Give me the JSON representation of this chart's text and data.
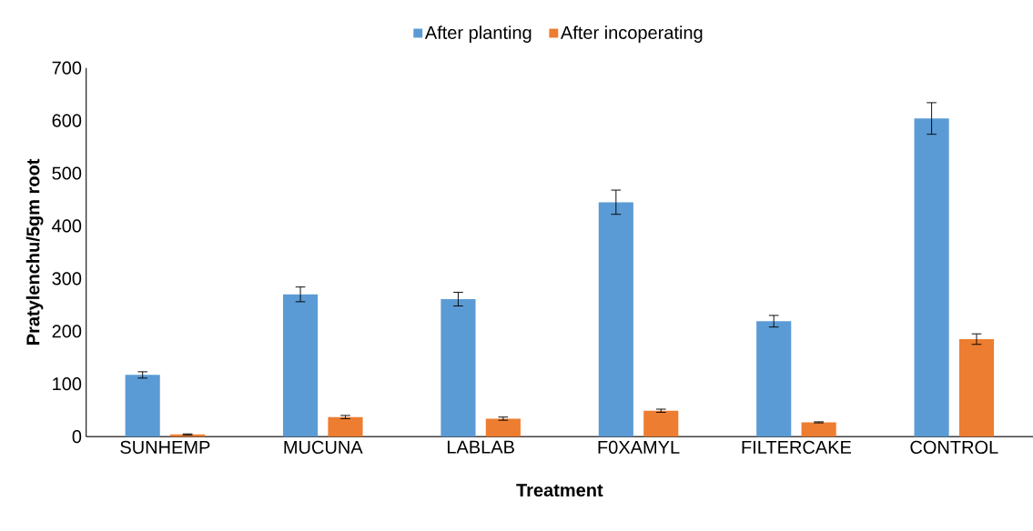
{
  "chart_data": {
    "type": "bar",
    "xlabel": "Treatment",
    "ylabel": "Pratylenchu/5gm root",
    "categories": [
      "SUNHEMP",
      "MUCUNA",
      "LABLAB",
      "F0XAMYL",
      "FILTERCAKE",
      "CONTROL"
    ],
    "series": [
      {
        "name": "After planting",
        "color": "#5b9bd5",
        "values": [
          117,
          270,
          261,
          445,
          219,
          604
        ],
        "errors": [
          6,
          14,
          13,
          23,
          11,
          30
        ]
      },
      {
        "name": "After incoperating",
        "color": "#ed7d31",
        "values": [
          4,
          37,
          34,
          49,
          27,
          185
        ],
        "errors": [
          1,
          3,
          3,
          3,
          1,
          10
        ]
      }
    ],
    "ylim": [
      0,
      700
    ],
    "yticks": [
      0,
      100,
      200,
      300,
      400,
      500,
      600,
      700
    ],
    "grid": false,
    "legend": "top"
  }
}
